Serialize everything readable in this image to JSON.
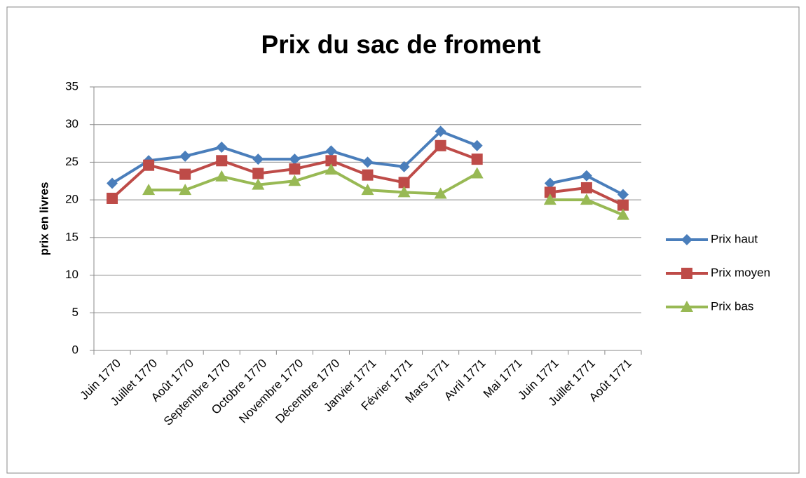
{
  "chart_data": {
    "type": "line",
    "title": "Prix du sac de froment",
    "y_label": "prix en livres",
    "categories": [
      "Juin 1770",
      "Juillet 1770",
      "Août 1770",
      "Septembre 1770",
      "Octobre 1770",
      "Novembre 1770",
      "Décembre 1770",
      "Janvier 1771",
      "Février 1771",
      "Mars 1771",
      "Avril 1771",
      "Mai 1771",
      "Juin 1771",
      "Juillet 1771",
      "Août 1771"
    ],
    "series": [
      {
        "name": "Prix haut",
        "color": "#4a7ebb",
        "marker": "diamond",
        "values": [
          22.2,
          25.2,
          25.8,
          27,
          25.4,
          25.4,
          26.5,
          25,
          24.4,
          29.1,
          27.2,
          null,
          22.2,
          23.2,
          20.7
        ]
      },
      {
        "name": "Prix moyen",
        "color": "#be4b48",
        "marker": "square",
        "values": [
          20.2,
          24.6,
          23.4,
          25.2,
          23.5,
          24.1,
          25.2,
          23.3,
          22.3,
          27.2,
          25.4,
          null,
          21,
          21.6,
          19.3
        ]
      },
      {
        "name": "Prix bas",
        "color": "#98b954",
        "marker": "triangle",
        "values": [
          null,
          21.3,
          21.3,
          23.1,
          22,
          22.5,
          24,
          21.3,
          21,
          20.8,
          23.5,
          null,
          20,
          20,
          18
        ]
      }
    ],
    "ylim": [
      0,
      35
    ],
    "yticks": [
      0,
      5,
      10,
      15,
      20,
      25,
      30,
      35
    ],
    "grid": true,
    "legend": "right"
  }
}
